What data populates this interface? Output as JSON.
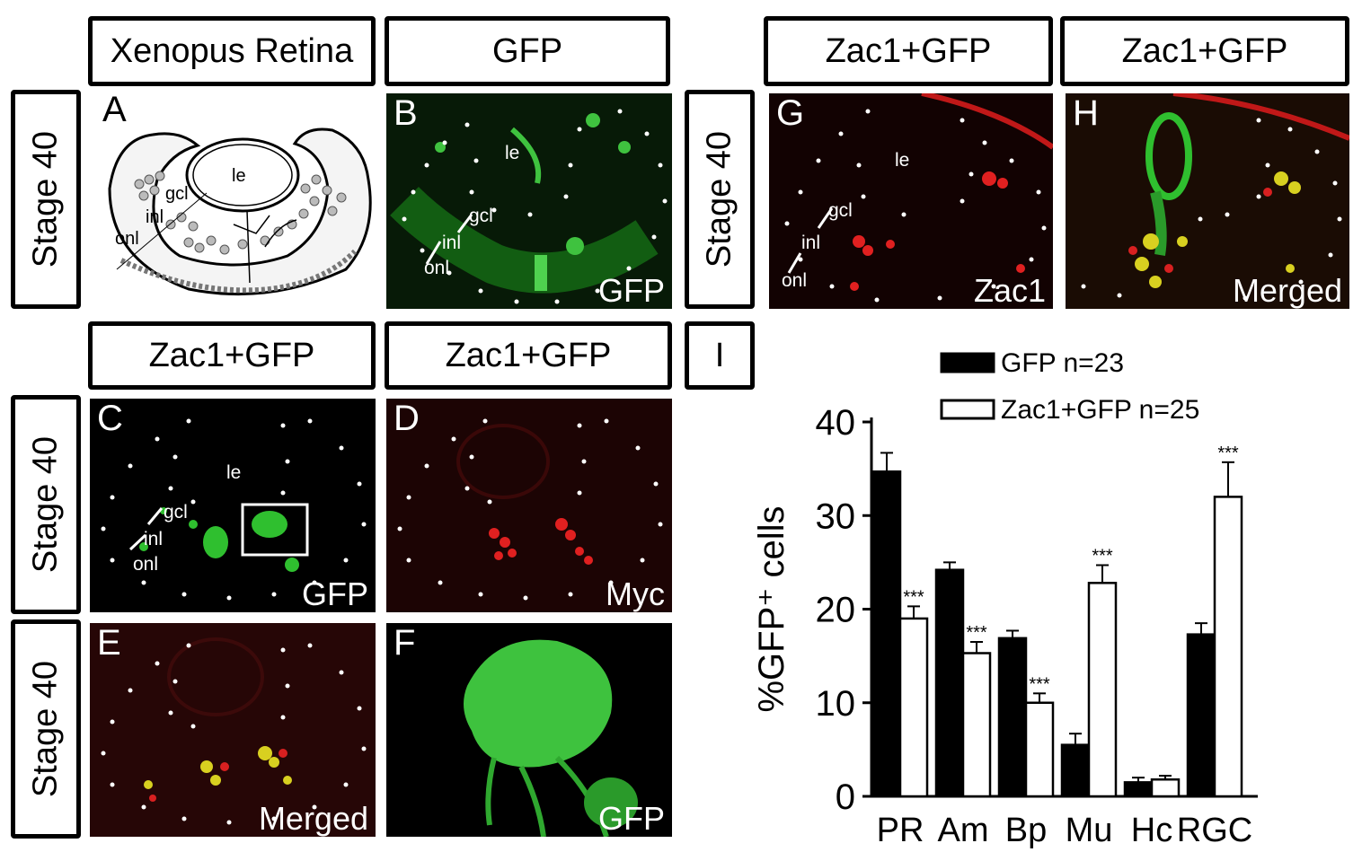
{
  "headers": {
    "top_left": "Xenopus Retina",
    "top_mid": "GFP",
    "top_right1": "Zac1+GFP",
    "top_right2": "Zac1+GFP",
    "mid_left": "Zac1+GFP",
    "mid_mid": "Zac1+GFP",
    "mid_i": "I"
  },
  "stage_label": "Stage 40",
  "panels": {
    "A": {
      "letter": "A",
      "le": "le",
      "gcl": "gcl",
      "inl": "inl",
      "onl": "onl"
    },
    "B": {
      "letter": "B",
      "le": "le",
      "gcl": "gcl",
      "inl": "inl",
      "onl": "onl",
      "caption": "GFP"
    },
    "C": {
      "letter": "C",
      "le": "le",
      "gcl": "gcl",
      "inl": "inl",
      "onl": "onl",
      "caption": "GFP"
    },
    "D": {
      "letter": "D",
      "caption": "Myc"
    },
    "E": {
      "letter": "E",
      "caption": "Merged"
    },
    "F": {
      "letter": "F",
      "caption": "GFP"
    },
    "G": {
      "letter": "G",
      "le": "le",
      "gcl": "gcl",
      "inl": "inl",
      "onl": "onl",
      "caption": "Zac1"
    },
    "H": {
      "letter": "H",
      "caption": "Merged"
    }
  },
  "colors": {
    "gfp": "#2fbf2f",
    "myc": "#d81818",
    "merged": "#d8d020",
    "black_bar": "#000000",
    "white_bar": "#ffffff"
  },
  "chart_data": {
    "type": "bar",
    "categories": [
      "PR",
      "Am",
      "Bp",
      "Mu",
      "Hc",
      "RGC"
    ],
    "series": [
      {
        "name": "GFP n=23",
        "values": [
          34.7,
          24.2,
          16.9,
          5.5,
          1.5,
          17.3
        ],
        "errors": [
          2.0,
          0.8,
          0.8,
          1.2,
          0.5,
          1.2
        ],
        "color": "#000000"
      },
      {
        "name": "Zac1+GFP n=25",
        "values": [
          19.0,
          15.3,
          10.0,
          22.8,
          1.8,
          32.0
        ],
        "errors": [
          1.3,
          1.2,
          1.0,
          1.9,
          0.4,
          3.7
        ],
        "color": "#ffffff",
        "significance": [
          "***",
          "***",
          "***",
          "***",
          "",
          "***"
        ]
      }
    ],
    "ylabel": "%GFP⁺ cells",
    "xlabel": "",
    "ylim": [
      0,
      40
    ],
    "yticks": [
      "0",
      "10",
      "20",
      "30",
      "40"
    ],
    "legend_position": "top"
  }
}
